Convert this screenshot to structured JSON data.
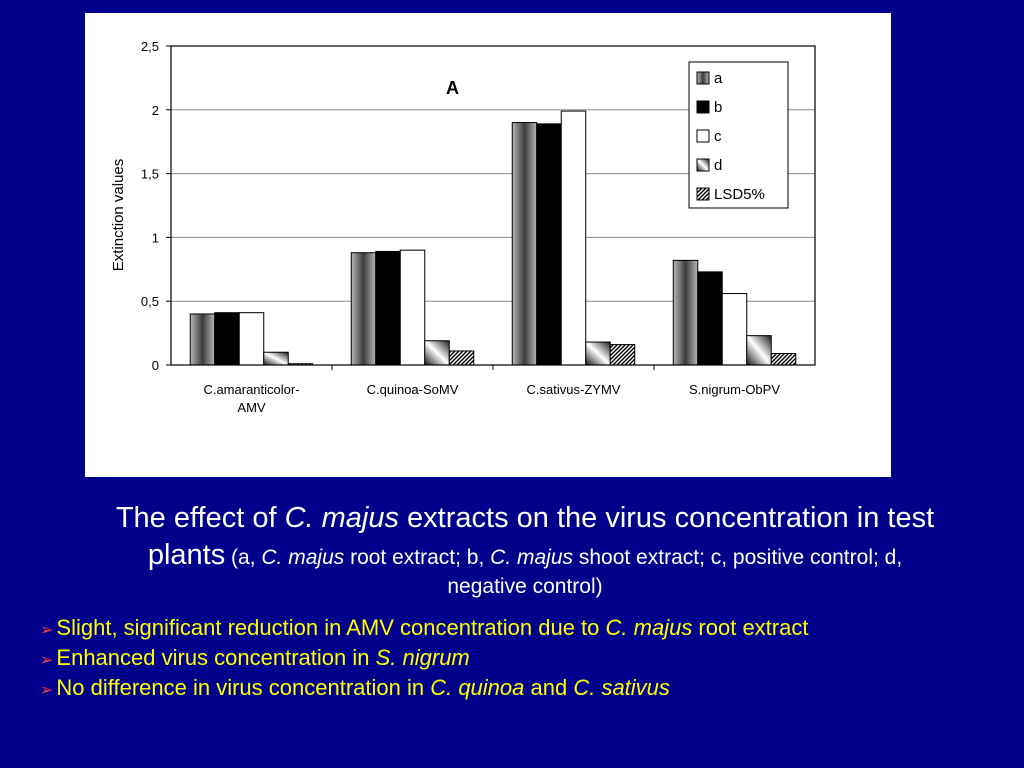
{
  "chart_data": {
    "type": "bar",
    "panel_label": "A",
    "ylabel": "Extinction values",
    "xlabel": "",
    "ylim": [
      0,
      2.5
    ],
    "yticks": [
      "0",
      "0,5",
      "1",
      "1,5",
      "2",
      "2,5"
    ],
    "grid": true,
    "legend_position": "top-right",
    "categories": [
      [
        "C.amaranticolor-",
        "AMV"
      ],
      [
        "C.quinoa-SoMV"
      ],
      [
        "C.sativus-ZYMV"
      ],
      [
        "S.nigrum-ObPV"
      ]
    ],
    "series": [
      {
        "name": "a",
        "values": [
          0.4,
          0.88,
          1.9,
          0.82
        ],
        "fill": "#8c8c8c"
      },
      {
        "name": "b",
        "values": [
          0.41,
          0.89,
          1.89,
          0.73
        ],
        "fill": "#000000"
      },
      {
        "name": "c",
        "values": [
          0.41,
          0.9,
          1.99,
          0.56
        ],
        "fill": "#ffffff"
      },
      {
        "name": "d",
        "values": [
          0.1,
          0.19,
          0.18,
          0.23
        ],
        "fill": "#9a9a9a"
      },
      {
        "name": "LSD5%",
        "values": [
          0.01,
          0.11,
          0.16,
          0.09
        ],
        "fill": "#555555"
      }
    ]
  },
  "caption": {
    "line1_pre": "The effect of ",
    "line1_ital": "C. majus",
    "line1_post": " extracts on the virus concentration in test",
    "line2_big": "plants",
    "line2_a": " (a, ",
    "line2_ital1": "C. majus",
    "line2_b": " root extract; b, ",
    "line2_ital2": "C. majus",
    "line2_c": " shoot extract; c, positive control; d,",
    "line3": "negative control)"
  },
  "bullets": [
    {
      "pre": "Slight, significant reduction in AMV concentration due to ",
      "ital": "C. majus",
      "post": " root extract"
    },
    {
      "pre": "Enhanced virus concentration in ",
      "ital": "S. nigrum",
      "post": ""
    },
    {
      "pre": "No difference in virus concentration in ",
      "ital": "C. quinoa",
      "mid": " and ",
      "ital2": "C. sativus"
    }
  ],
  "colors": {
    "background": "#00008b",
    "caption_text": "#ffffff",
    "bullet_text": "#ffff00",
    "bullet_marker": "#ff3a3a"
  }
}
